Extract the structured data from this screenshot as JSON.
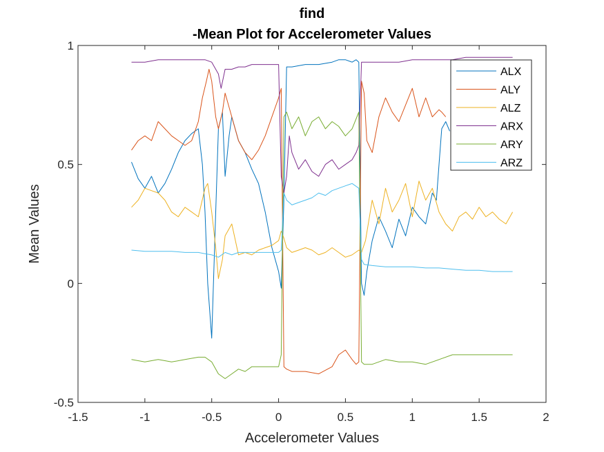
{
  "chart_data": {
    "type": "line",
    "title": [
      "find",
      "-Mean Plot for Accelerometer Values"
    ],
    "xlabel": "Accelerometer Values",
    "ylabel": "Mean Values",
    "xlim": [
      -1.5,
      2
    ],
    "ylim": [
      -0.5,
      1
    ],
    "xticks": [
      -1.5,
      -1,
      -0.5,
      0,
      0.5,
      1,
      1.5,
      2
    ],
    "xtick_labels": [
      "-1.5",
      "-1",
      "-0.5",
      "0",
      "0.5",
      "1",
      "1.5",
      "2"
    ],
    "yticks": [
      -0.5,
      0,
      0.5,
      1
    ],
    "ytick_labels": [
      "-0.5",
      "0",
      "0.5",
      "1"
    ],
    "legend_position": "top-right",
    "grid": false,
    "series": [
      {
        "name": "ALX",
        "color": "#0072BD",
        "x": [
          -1.1,
          -1.05,
          -1.0,
          -0.95,
          -0.9,
          -0.85,
          -0.8,
          -0.75,
          -0.7,
          -0.65,
          -0.6,
          -0.57,
          -0.55,
          -0.53,
          -0.5,
          -0.47,
          -0.45,
          -0.42,
          -0.4,
          -0.37,
          -0.35,
          -0.3,
          -0.25,
          -0.2,
          -0.15,
          -0.1,
          -0.05,
          0.0,
          0.02,
          0.04,
          0.06,
          0.1,
          0.2,
          0.3,
          0.4,
          0.45,
          0.5,
          0.55,
          0.58,
          0.6,
          0.62,
          0.64,
          0.66,
          0.7,
          0.75,
          0.8,
          0.85,
          0.9,
          0.95,
          1.0,
          1.05,
          1.1,
          1.15,
          1.18,
          1.2,
          1.22,
          1.25,
          1.28
        ],
        "y": [
          0.51,
          0.44,
          0.4,
          0.45,
          0.38,
          0.42,
          0.48,
          0.55,
          0.6,
          0.63,
          0.65,
          0.5,
          0.3,
          0.0,
          -0.23,
          0.3,
          0.65,
          0.72,
          0.45,
          0.62,
          0.7,
          0.6,
          0.55,
          0.48,
          0.42,
          0.3,
          0.15,
          0.05,
          -0.02,
          0.35,
          0.91,
          0.91,
          0.92,
          0.92,
          0.93,
          0.94,
          0.94,
          0.93,
          0.94,
          0.93,
          0.0,
          -0.05,
          0.05,
          0.18,
          0.28,
          0.22,
          0.15,
          0.27,
          0.2,
          0.32,
          0.28,
          0.25,
          0.38,
          0.35,
          0.5,
          0.65,
          0.68,
          0.64
        ]
      },
      {
        "name": "ALY",
        "color": "#D95319",
        "x": [
          -1.1,
          -1.05,
          -1.0,
          -0.95,
          -0.9,
          -0.85,
          -0.8,
          -0.75,
          -0.7,
          -0.65,
          -0.6,
          -0.57,
          -0.54,
          -0.52,
          -0.5,
          -0.47,
          -0.45,
          -0.42,
          -0.4,
          -0.35,
          -0.3,
          -0.25,
          -0.2,
          -0.15,
          -0.1,
          -0.05,
          0.0,
          0.02,
          0.04,
          0.06,
          0.1,
          0.2,
          0.3,
          0.4,
          0.45,
          0.5,
          0.55,
          0.58,
          0.6,
          0.62,
          0.64,
          0.66,
          0.7,
          0.75,
          0.8,
          0.85,
          0.9,
          0.95,
          1.0,
          1.05,
          1.1,
          1.15,
          1.2,
          1.22,
          1.25
        ],
        "y": [
          0.56,
          0.6,
          0.62,
          0.6,
          0.68,
          0.65,
          0.62,
          0.6,
          0.58,
          0.6,
          0.68,
          0.78,
          0.85,
          0.9,
          0.85,
          0.7,
          0.65,
          0.72,
          0.8,
          0.7,
          0.6,
          0.55,
          0.52,
          0.56,
          0.62,
          0.7,
          0.78,
          0.82,
          -0.35,
          -0.36,
          -0.37,
          -0.37,
          -0.38,
          -0.35,
          -0.3,
          -0.28,
          -0.32,
          -0.34,
          -0.33,
          0.85,
          0.8,
          0.6,
          0.55,
          0.7,
          0.78,
          0.72,
          0.68,
          0.75,
          0.82,
          0.7,
          0.78,
          0.7,
          0.73,
          0.72,
          0.7
        ]
      },
      {
        "name": "ALZ",
        "color": "#EDB120",
        "x": [
          -1.1,
          -1.05,
          -1.0,
          -0.95,
          -0.9,
          -0.85,
          -0.8,
          -0.75,
          -0.7,
          -0.65,
          -0.6,
          -0.55,
          -0.53,
          -0.5,
          -0.47,
          -0.45,
          -0.42,
          -0.4,
          -0.35,
          -0.3,
          -0.25,
          -0.2,
          -0.15,
          -0.1,
          -0.05,
          0.0,
          0.02,
          0.04,
          0.06,
          0.1,
          0.15,
          0.2,
          0.25,
          0.3,
          0.35,
          0.4,
          0.45,
          0.5,
          0.55,
          0.6,
          0.62,
          0.65,
          0.7,
          0.75,
          0.8,
          0.85,
          0.9,
          0.95,
          1.0,
          1.05,
          1.1,
          1.15,
          1.2,
          1.25,
          1.3,
          1.35,
          1.4,
          1.45,
          1.5,
          1.55,
          1.6,
          1.65,
          1.7,
          1.75
        ],
        "y": [
          0.32,
          0.35,
          0.4,
          0.39,
          0.38,
          0.35,
          0.3,
          0.28,
          0.32,
          0.3,
          0.28,
          0.4,
          0.42,
          0.3,
          0.15,
          0.02,
          0.1,
          0.2,
          0.25,
          0.12,
          0.13,
          0.12,
          0.14,
          0.15,
          0.16,
          0.18,
          0.22,
          0.19,
          0.15,
          0.13,
          0.14,
          0.15,
          0.14,
          0.12,
          0.13,
          0.15,
          0.13,
          0.11,
          0.12,
          0.14,
          0.13,
          0.18,
          0.35,
          0.25,
          0.4,
          0.3,
          0.35,
          0.42,
          0.28,
          0.43,
          0.35,
          0.4,
          0.3,
          0.25,
          0.22,
          0.28,
          0.3,
          0.27,
          0.32,
          0.28,
          0.3,
          0.27,
          0.25,
          0.3
        ]
      },
      {
        "name": "ARX",
        "color": "#7E2F8E",
        "x": [
          -1.1,
          -1.0,
          -0.9,
          -0.8,
          -0.7,
          -0.6,
          -0.55,
          -0.5,
          -0.47,
          -0.45,
          -0.43,
          -0.4,
          -0.35,
          -0.3,
          -0.25,
          -0.2,
          -0.15,
          -0.1,
          -0.05,
          0.0,
          0.02,
          0.04,
          0.06,
          0.08,
          0.1,
          0.15,
          0.2,
          0.25,
          0.3,
          0.35,
          0.4,
          0.45,
          0.5,
          0.55,
          0.58,
          0.6,
          0.62,
          0.64,
          0.7,
          0.8,
          0.9,
          1.0,
          1.1,
          1.2,
          1.3,
          1.4,
          1.5,
          1.6,
          1.7,
          1.75
        ],
        "y": [
          0.93,
          0.93,
          0.94,
          0.94,
          0.94,
          0.94,
          0.94,
          0.93,
          0.9,
          0.88,
          0.82,
          0.9,
          0.9,
          0.91,
          0.91,
          0.92,
          0.92,
          0.92,
          0.92,
          0.92,
          0.45,
          0.38,
          0.45,
          0.62,
          0.55,
          0.48,
          0.52,
          0.47,
          0.45,
          0.5,
          0.52,
          0.48,
          0.5,
          0.52,
          0.55,
          0.58,
          0.93,
          0.93,
          0.93,
          0.93,
          0.93,
          0.94,
          0.94,
          0.94,
          0.94,
          0.95,
          0.95,
          0.95,
          0.95,
          0.95
        ]
      },
      {
        "name": "ARY",
        "color": "#77AC30",
        "x": [
          -1.1,
          -1.0,
          -0.9,
          -0.8,
          -0.7,
          -0.6,
          -0.55,
          -0.5,
          -0.45,
          -0.4,
          -0.35,
          -0.3,
          -0.25,
          -0.2,
          -0.15,
          -0.1,
          -0.05,
          0.0,
          0.02,
          0.04,
          0.06,
          0.1,
          0.15,
          0.2,
          0.25,
          0.3,
          0.35,
          0.4,
          0.45,
          0.5,
          0.55,
          0.6,
          0.62,
          0.64,
          0.7,
          0.8,
          0.9,
          1.0,
          1.1,
          1.2,
          1.3,
          1.4,
          1.5,
          1.6,
          1.7,
          1.75
        ],
        "y": [
          -0.32,
          -0.33,
          -0.32,
          -0.33,
          -0.32,
          -0.31,
          -0.31,
          -0.33,
          -0.38,
          -0.4,
          -0.38,
          -0.36,
          -0.37,
          -0.35,
          -0.35,
          -0.35,
          -0.35,
          -0.35,
          -0.3,
          0.7,
          0.72,
          0.65,
          0.7,
          0.62,
          0.68,
          0.7,
          0.65,
          0.68,
          0.66,
          0.62,
          0.65,
          0.72,
          -0.33,
          -0.34,
          -0.34,
          -0.32,
          -0.33,
          -0.33,
          -0.34,
          -0.32,
          -0.3,
          -0.3,
          -0.3,
          -0.3,
          -0.3,
          -0.3
        ]
      },
      {
        "name": "ARZ",
        "color": "#4DBEEE",
        "x": [
          -1.1,
          -1.0,
          -0.9,
          -0.8,
          -0.7,
          -0.6,
          -0.55,
          -0.5,
          -0.45,
          -0.4,
          -0.35,
          -0.3,
          -0.2,
          -0.1,
          0.0,
          0.02,
          0.04,
          0.06,
          0.1,
          0.15,
          0.2,
          0.25,
          0.3,
          0.35,
          0.4,
          0.45,
          0.5,
          0.55,
          0.6,
          0.62,
          0.64,
          0.7,
          0.8,
          0.9,
          1.0,
          1.1,
          1.2,
          1.3,
          1.4,
          1.5,
          1.6,
          1.7,
          1.75
        ],
        "y": [
          0.14,
          0.135,
          0.135,
          0.135,
          0.13,
          0.13,
          0.125,
          0.12,
          0.11,
          0.13,
          0.12,
          0.13,
          0.13,
          0.13,
          0.13,
          0.14,
          0.38,
          0.35,
          0.33,
          0.34,
          0.35,
          0.36,
          0.38,
          0.37,
          0.39,
          0.4,
          0.41,
          0.42,
          0.4,
          0.1,
          0.08,
          0.075,
          0.07,
          0.07,
          0.07,
          0.065,
          0.065,
          0.06,
          0.055,
          0.055,
          0.05,
          0.05,
          0.05
        ]
      }
    ]
  }
}
